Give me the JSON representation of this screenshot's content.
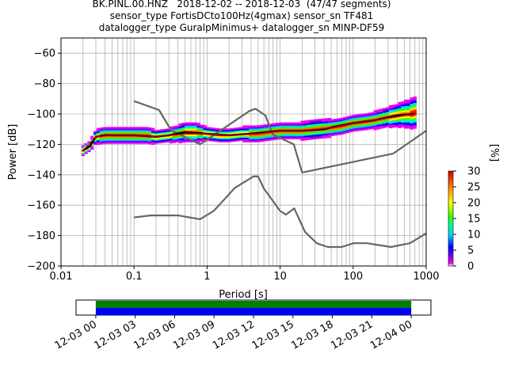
{
  "chart_data": [
    {
      "type": "heatmap",
      "title_lines": [
        "BK.PINL.00.HNZ   2018-12-02 -- 2018-12-03  (47/47 segments)",
        "sensor_type FortisDCto100Hz(4gmax) sensor_sn TF481",
        "datalogger_type GuralpMinimus+ datalogger_sn MINP-DF59"
      ],
      "xlabel": "Period [s]",
      "ylabel": "Power [dB]",
      "xscale": "log",
      "xlim": [
        0.01,
        1000
      ],
      "ylim": [
        -200,
        -50
      ],
      "x_ticks": [
        "0.01",
        "0.1",
        "1",
        "10",
        "100",
        "1000"
      ],
      "y_ticks": [
        "−60",
        "−80",
        "−100",
        "−120",
        "−140",
        "−160",
        "−180",
        "−200"
      ],
      "grid": true,
      "colorbar": {
        "label": "[%]",
        "ticks": [
          "0",
          "5",
          "10",
          "15",
          "20",
          "25",
          "30"
        ],
        "range": [
          0,
          30
        ]
      },
      "series": [
        {
          "role": "noise model high (NHNM)",
          "color": "#666666",
          "x": [
            0.1,
            0.22,
            0.32,
            0.8,
            3.8,
            4.6,
            6.3,
            7.9,
            15.4,
            20,
            354.8
          ],
          "y": [
            -91.5,
            -97.4,
            -110.5,
            -120,
            -98,
            -96.5,
            -101,
            -113.5,
            -120,
            -138.5,
            -126
          ],
          "extra": {
            "x": [
              354.8,
              1000
            ],
            "y": [
              -126,
              -111
            ]
          }
        },
        {
          "role": "noise model low (NLNM)",
          "color": "#666666",
          "x": [
            0.1,
            0.17,
            0.4,
            0.8,
            1.24,
            2.4,
            4.3,
            5.0,
            6.0,
            10.0,
            12.0,
            15.6,
            21.9,
            31.6,
            45,
            70,
            101,
            154,
            328,
            600,
            1000
          ],
          "y": [
            -168,
            -166.7,
            -166.7,
            -169.2,
            -163.7,
            -148.6,
            -141.1,
            -141.1,
            -149,
            -163.8,
            -166.2,
            -162.1,
            -177.5,
            -185,
            -187.5,
            -187.5,
            -185,
            -185,
            -187.5,
            -185,
            -178.5
          ]
        },
        {
          "role": "median PSD",
          "color": "#000000",
          "x": [
            0.02,
            0.025,
            0.03,
            0.04,
            0.07,
            0.1,
            0.2,
            0.3,
            0.5,
            1,
            2,
            4,
            10,
            20,
            40,
            60,
            100,
            200,
            400,
            700
          ],
          "y": [
            -124,
            -121,
            -115,
            -114,
            -114,
            -114,
            -115,
            -114,
            -112,
            -113,
            -114,
            -113,
            -111,
            -111,
            -110,
            -108,
            -106,
            -104,
            -101,
            -100
          ]
        },
        {
          "role": "mean PSD",
          "color": "#cc0000",
          "x": [
            0.02,
            0.03,
            0.05,
            0.1,
            0.2,
            0.5,
            1,
            2,
            5,
            10,
            20,
            50,
            100,
            200,
            500,
            700
          ],
          "y": [
            -124,
            -115,
            -114,
            -114,
            -115,
            -113,
            -113,
            -114,
            -113,
            -111,
            -111,
            -109,
            -106,
            -104,
            -101,
            -100
          ]
        }
      ],
      "psd_density": {
        "period": [
          0.02,
          0.025,
          0.03,
          0.04,
          0.05,
          0.07,
          0.1,
          0.15,
          0.2,
          0.3,
          0.4,
          0.5,
          0.7,
          1,
          1.5,
          2,
          3,
          5,
          7,
          10,
          15,
          20,
          30,
          50,
          70,
          100,
          150,
          200,
          300,
          400,
          500,
          600,
          700
        ],
        "center_db": [
          -124,
          -121,
          -115,
          -114,
          -114,
          -114,
          -114,
          -114,
          -115,
          -114,
          -113,
          -112,
          -112,
          -113,
          -114,
          -114,
          -113,
          -113,
          -112,
          -111,
          -111,
          -111,
          -110,
          -109,
          -108,
          -106,
          -105,
          -104,
          -102,
          -101,
          -100,
          -100,
          -99
        ],
        "spread_db": [
          3,
          3,
          4,
          5,
          5,
          5,
          5,
          5,
          4,
          4,
          5,
          6,
          6,
          4,
          4,
          4,
          4,
          5,
          5,
          5,
          5,
          5,
          6,
          5,
          5,
          5,
          5,
          5,
          6,
          7,
          8,
          9,
          10
        ]
      }
    },
    {
      "type": "bar",
      "role": "data availability timeline",
      "x_ticks": [
        "12-03 00",
        "12-03 03",
        "12-03 06",
        "12-03 09",
        "12-03 12",
        "12-03 15",
        "12-03 18",
        "12-03 21",
        "12-04 00"
      ],
      "x_range_hours": [
        -1.5,
        25.5
      ],
      "series": [
        {
          "color": "#008000",
          "start_hour": 0,
          "end_hour": 24
        },
        {
          "color": "#0000ff",
          "start_hour": 0,
          "end_hour": 24
        }
      ]
    }
  ]
}
